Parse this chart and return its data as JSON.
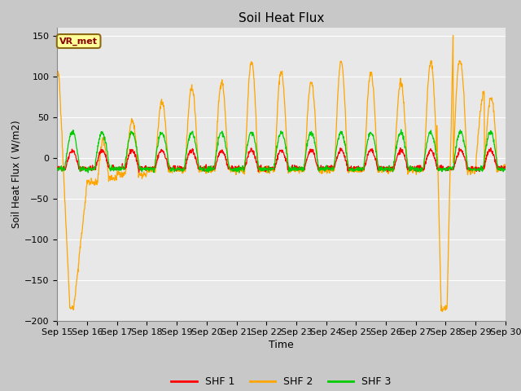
{
  "title": "Soil Heat Flux",
  "xlabel": "Time",
  "ylabel": "Soil Heat Flux (W/m2)",
  "ylim": [
    -200,
    160
  ],
  "yticks": [
    -200,
    -150,
    -100,
    -50,
    0,
    50,
    100,
    150
  ],
  "line_colors": {
    "SHF 1": "#ff0000",
    "SHF 2": "#ffa500",
    "SHF 3": "#00cc00"
  },
  "annotation_text": "VR_met",
  "annotation_box_facecolor": "#ffff99",
  "annotation_border_color": "#8b6914",
  "annotation_text_color": "#8b0000",
  "x_tick_labels": [
    "Sep 15",
    "Sep 16",
    "Sep 17",
    "Sep 18",
    "Sep 19",
    "Sep 20",
    "Sep 21",
    "Sep 22",
    "Sep 23",
    "Sep 24",
    "Sep 25",
    "Sep 26",
    "Sep 27",
    "Sep 28",
    "Sep 29",
    "Sep 30"
  ],
  "fig_facecolor": "#c8c8c8",
  "ax_facecolor": "#e8e8e8",
  "grid_color": "#ffffff"
}
